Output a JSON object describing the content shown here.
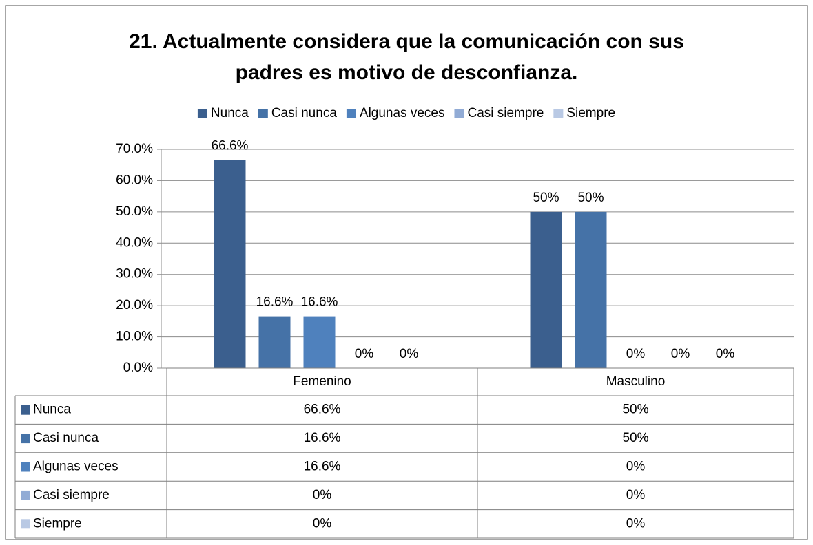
{
  "chart_data": {
    "type": "bar",
    "title": [
      "21. Actualmente considera que la comunicación con sus",
      "padres es motivo de desconfianza."
    ],
    "categories": [
      "Femenino",
      "Masculino"
    ],
    "series": [
      {
        "name": "Nunca",
        "color": "#3b5f8e",
        "values": [
          66.6,
          50
        ],
        "value_labels": [
          "66.6%",
          "50%"
        ]
      },
      {
        "name": "Casi nunca",
        "color": "#4572a7",
        "values": [
          16.6,
          50
        ],
        "value_labels": [
          "16.6%",
          "50%"
        ]
      },
      {
        "name": "Algunas veces",
        "color": "#4f81bd",
        "values": [
          16.6,
          0
        ],
        "value_labels": [
          "16.6%",
          "0%"
        ]
      },
      {
        "name": "Casi siempre",
        "color": "#91abd5",
        "values": [
          0,
          0
        ],
        "value_labels": [
          "0%",
          "0%"
        ]
      },
      {
        "name": "Siempre",
        "color": "#b9c9e4",
        "values": [
          0,
          0
        ],
        "value_labels": [
          "0%",
          "0%"
        ]
      }
    ],
    "ylim": [
      0,
      70
    ],
    "yticks": [
      {
        "value": 0,
        "label": "0.0%"
      },
      {
        "value": 10,
        "label": "10.0%"
      },
      {
        "value": 20,
        "label": "20.0%"
      },
      {
        "value": 30,
        "label": "30.0%"
      },
      {
        "value": 40,
        "label": "40.0%"
      },
      {
        "value": 50,
        "label": "50.0%"
      },
      {
        "value": 60,
        "label": "60.0%"
      },
      {
        "value": 70,
        "label": "70.0%"
      }
    ],
    "grid": true,
    "legend": "top",
    "data_table": true
  }
}
